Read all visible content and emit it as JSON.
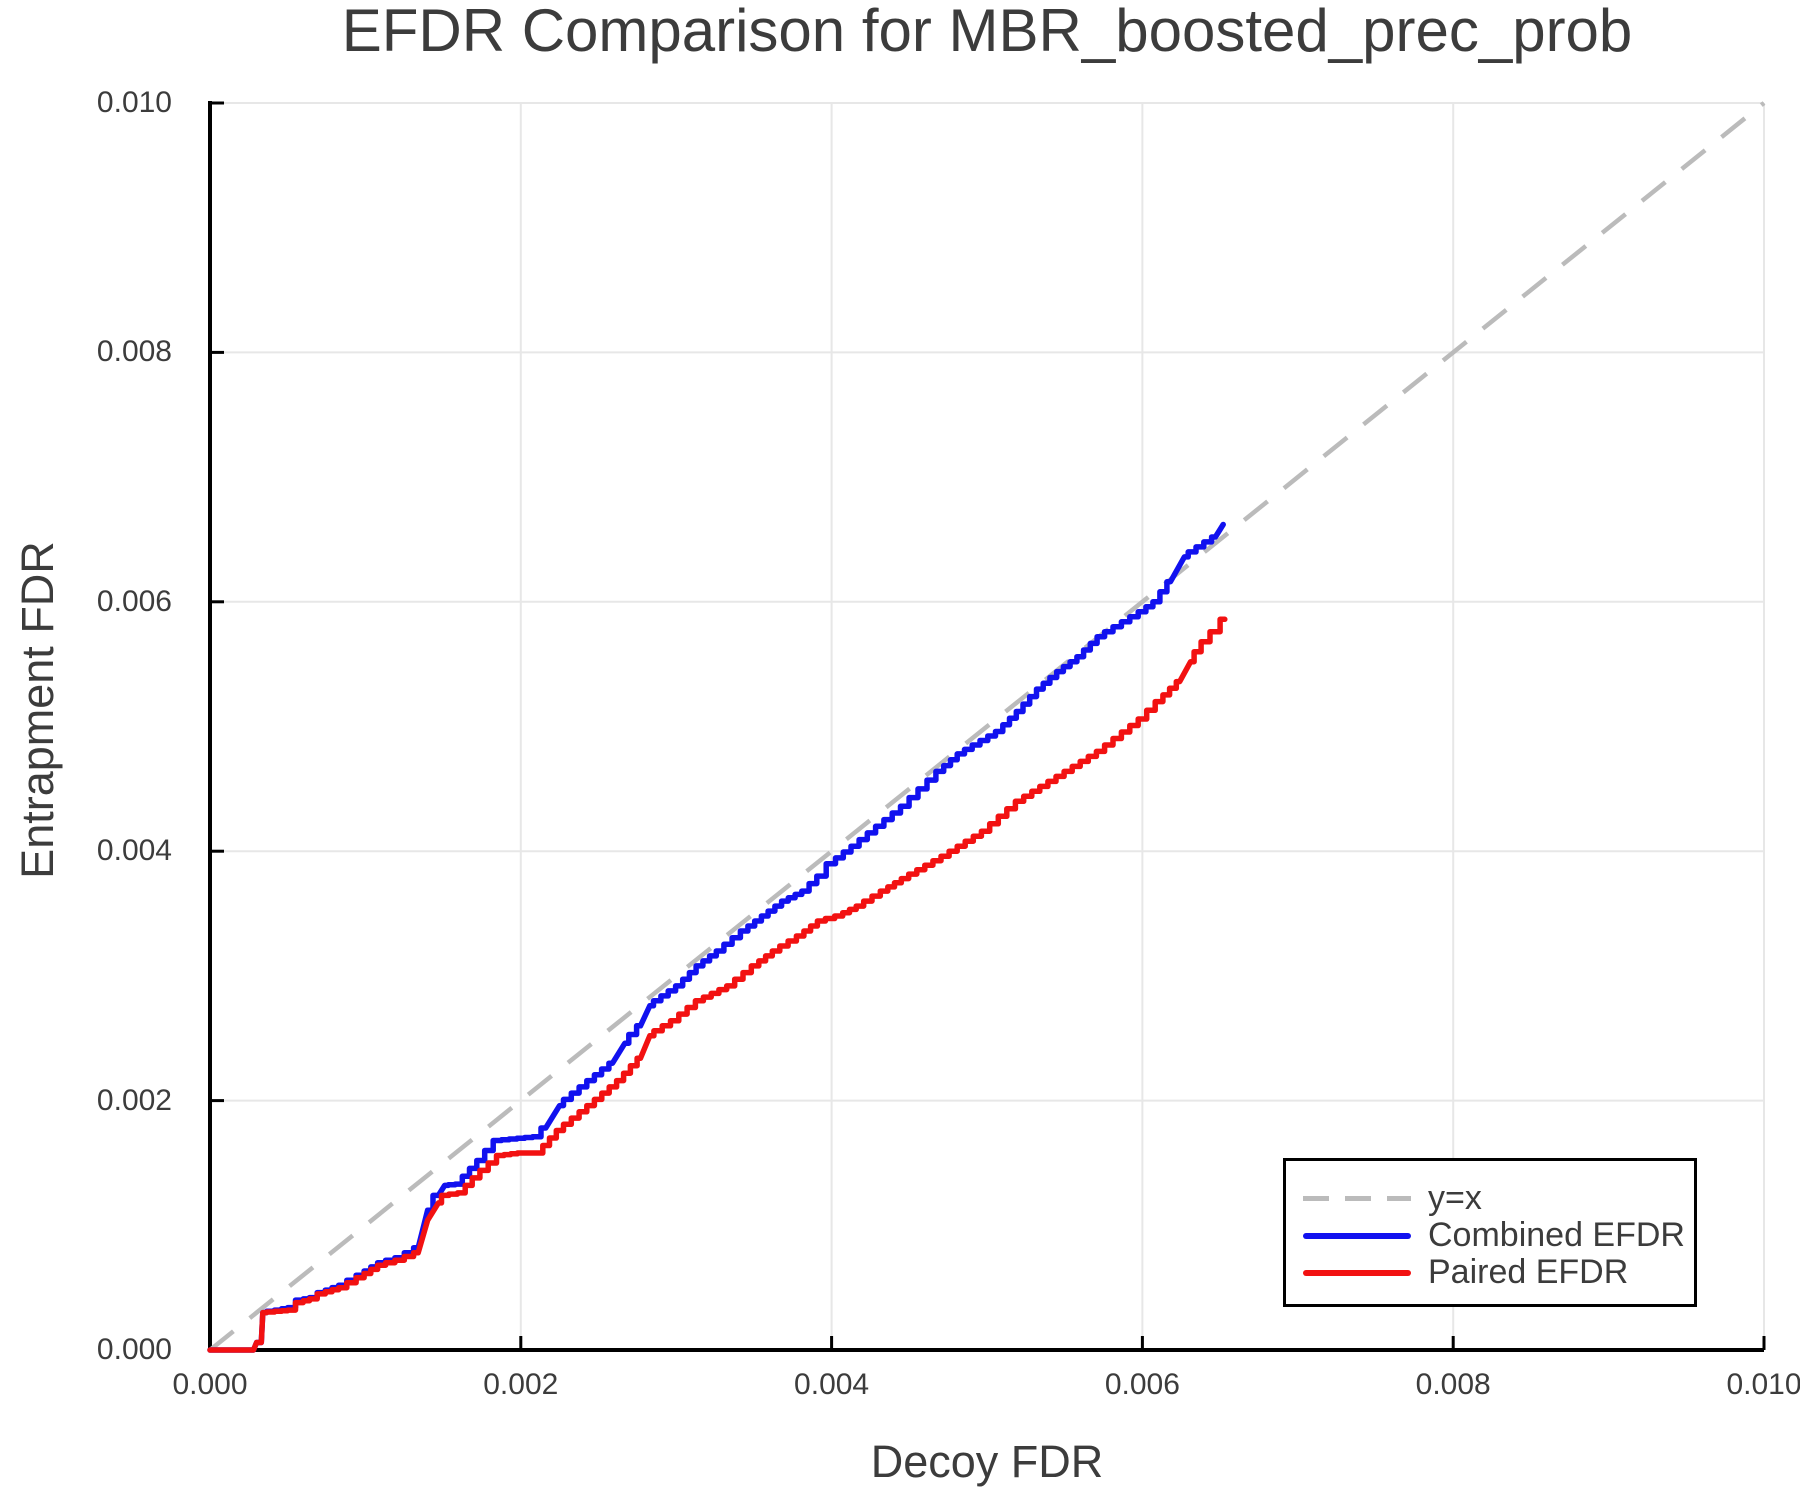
{
  "chart_data": {
    "type": "line",
    "title": "EFDR Comparison for MBR_boosted_prec_prob",
    "xlabel": "Decoy FDR",
    "ylabel": "Entrapment FDR",
    "xlim": [
      0.0,
      0.01
    ],
    "ylim": [
      0.0,
      0.01
    ],
    "x_ticks": [
      0.0,
      0.002,
      0.004,
      0.006,
      0.008,
      0.01
    ],
    "x_tick_labels": [
      "0.000",
      "0.002",
      "0.004",
      "0.006",
      "0.008",
      "0.010"
    ],
    "y_ticks": [
      0.0,
      0.002,
      0.004,
      0.006,
      0.008,
      0.01
    ],
    "y_tick_labels": [
      "0.000",
      "0.002",
      "0.004",
      "0.006",
      "0.008",
      "0.010"
    ],
    "grid": true,
    "legend_position": "bottom-right",
    "colors": {
      "grid": "#E7E7E7",
      "axis": "#000000",
      "text": "#3C3C3C"
    },
    "reference_line": {
      "label": "y=x",
      "style": "dashed",
      "color": "#BBBBBB",
      "from": [
        0.0,
        0.0
      ],
      "to": [
        0.01,
        0.01
      ]
    },
    "series": [
      {
        "name": "Combined EFDR",
        "color": "#1111EF",
        "points": [
          [
            0.0,
            0.0
          ],
          [
            0.00028,
            0.0
          ],
          [
            0.0003,
            6e-05
          ],
          [
            0.00033,
            6e-05
          ],
          [
            0.00034,
            0.0003
          ],
          [
            0.00044,
            0.00032
          ],
          [
            0.00052,
            0.00034
          ],
          [
            0.00058,
            0.0004
          ],
          [
            0.00066,
            0.00042
          ],
          [
            0.00072,
            0.00046
          ],
          [
            0.00085,
            0.00052
          ],
          [
            0.00097,
            0.0006
          ],
          [
            0.0011,
            0.0007
          ],
          [
            0.00122,
            0.00074
          ],
          [
            0.00134,
            0.00082
          ],
          [
            0.0014,
            0.00112
          ],
          [
            0.00147,
            0.00124
          ],
          [
            0.00151,
            0.00132
          ],
          [
            0.0016,
            0.00133
          ],
          [
            0.00174,
            0.00152
          ],
          [
            0.00185,
            0.00168
          ],
          [
            0.0021,
            0.00171
          ],
          [
            0.00216,
            0.00178
          ],
          [
            0.00225,
            0.00196
          ],
          [
            0.00245,
            0.00216
          ],
          [
            0.00259,
            0.0023
          ],
          [
            0.00267,
            0.00246
          ],
          [
            0.00277,
            0.0026
          ],
          [
            0.00283,
            0.00276
          ],
          [
            0.00302,
            0.00292
          ],
          [
            0.00315,
            0.00308
          ],
          [
            0.00328,
            0.0032
          ],
          [
            0.00344,
            0.00336
          ],
          [
            0.00357,
            0.00348
          ],
          [
            0.0037,
            0.0036
          ],
          [
            0.00383,
            0.00368
          ],
          [
            0.00393,
            0.0038
          ],
          [
            0.004,
            0.0039
          ],
          [
            0.00415,
            0.00404
          ],
          [
            0.00431,
            0.0042
          ],
          [
            0.00447,
            0.00436
          ],
          [
            0.0047,
            0.00464
          ],
          [
            0.00483,
            0.00478
          ],
          [
            0.00508,
            0.00496
          ],
          [
            0.00521,
            0.00512
          ],
          [
            0.00534,
            0.0053
          ],
          [
            0.00547,
            0.00544
          ],
          [
            0.0056,
            0.00556
          ],
          [
            0.00573,
            0.00572
          ],
          [
            0.006,
            0.00592
          ],
          [
            0.00609,
            0.006
          ],
          [
            0.00618,
            0.00616
          ],
          [
            0.00627,
            0.00636
          ],
          [
            0.00637,
            0.00644
          ],
          [
            0.00647,
            0.00652
          ],
          [
            0.00652,
            0.00662
          ]
        ]
      },
      {
        "name": "Paired EFDR",
        "color": "#F21111",
        "points": [
          [
            0.0,
            0.0
          ],
          [
            0.00028,
            0.0
          ],
          [
            0.0003,
            6e-05
          ],
          [
            0.00033,
            6e-05
          ],
          [
            0.00034,
            0.0003
          ],
          [
            0.00044,
            0.00031
          ],
          [
            0.00052,
            0.00032
          ],
          [
            0.00058,
            0.00038
          ],
          [
            0.00066,
            0.00041
          ],
          [
            0.00072,
            0.00045
          ],
          [
            0.00085,
            0.0005
          ],
          [
            0.00097,
            0.00058
          ],
          [
            0.0011,
            0.00068
          ],
          [
            0.00122,
            0.00072
          ],
          [
            0.00134,
            0.00078
          ],
          [
            0.0014,
            0.00104
          ],
          [
            0.00147,
            0.00118
          ],
          [
            0.00151,
            0.00124
          ],
          [
            0.00162,
            0.00126
          ],
          [
            0.00171,
            0.00138
          ],
          [
            0.00187,
            0.00156
          ],
          [
            0.002,
            0.00158
          ],
          [
            0.00212,
            0.00158
          ],
          [
            0.00225,
            0.00176
          ],
          [
            0.00245,
            0.00196
          ],
          [
            0.00264,
            0.00216
          ],
          [
            0.00277,
            0.00234
          ],
          [
            0.00283,
            0.00252
          ],
          [
            0.00299,
            0.00264
          ],
          [
            0.00315,
            0.0028
          ],
          [
            0.00335,
            0.00292
          ],
          [
            0.00351,
            0.00308
          ],
          [
            0.00364,
            0.0032
          ],
          [
            0.0038,
            0.00332
          ],
          [
            0.00393,
            0.00344
          ],
          [
            0.00405,
            0.00348
          ],
          [
            0.00418,
            0.00356
          ],
          [
            0.00434,
            0.00368
          ],
          [
            0.00447,
            0.00378
          ],
          [
            0.00473,
            0.00396
          ],
          [
            0.00499,
            0.00416
          ],
          [
            0.00521,
            0.0044
          ],
          [
            0.00547,
            0.0046
          ],
          [
            0.00573,
            0.0048
          ],
          [
            0.006,
            0.00506
          ],
          [
            0.00611,
            0.0052
          ],
          [
            0.00624,
            0.00536
          ],
          [
            0.00631,
            0.00552
          ],
          [
            0.0064,
            0.00568
          ],
          [
            0.00647,
            0.00576
          ],
          [
            0.00653,
            0.00586
          ]
        ]
      }
    ]
  }
}
